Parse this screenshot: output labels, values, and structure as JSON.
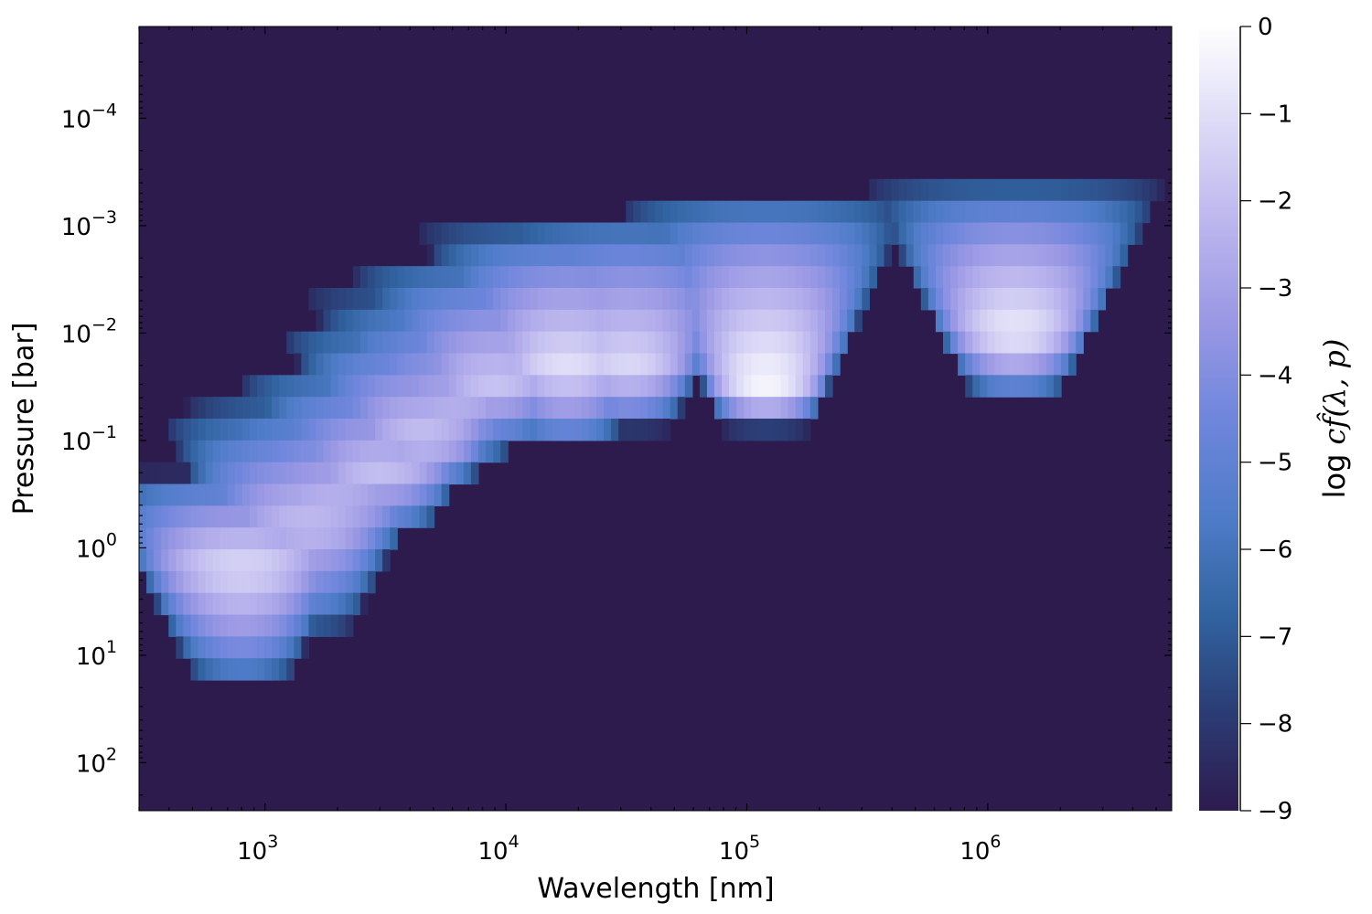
{
  "chart_data": {
    "type": "heatmap",
    "title": "",
    "xlabel": "Wavelength [nm]",
    "ylabel": "Pressure [bar]",
    "x_scale": "log",
    "y_scale": "log",
    "y_inverted": true,
    "xlim": [
      300,
      5800000
    ],
    "ylim": [
      280,
      1.4e-05
    ],
    "x_ticks": [
      {
        "value": 1000,
        "mantissa": "10",
        "exponent": "3"
      },
      {
        "value": 10000,
        "mantissa": "10",
        "exponent": "4"
      },
      {
        "value": 100000,
        "mantissa": "10",
        "exponent": "5"
      },
      {
        "value": 1000000,
        "mantissa": "10",
        "exponent": "6"
      }
    ],
    "y_ticks": [
      {
        "value": 0.0001,
        "mantissa": "10",
        "exponent": "−4"
      },
      {
        "value": 0.001,
        "mantissa": "10",
        "exponent": "−3"
      },
      {
        "value": 0.01,
        "mantissa": "10",
        "exponent": "−2"
      },
      {
        "value": 0.1,
        "mantissa": "10",
        "exponent": "−1"
      },
      {
        "value": 1,
        "mantissa": "10",
        "exponent": "0"
      },
      {
        "value": 10,
        "mantissa": "10",
        "exponent": "1"
      },
      {
        "value": 100,
        "mantissa": "10",
        "exponent": "2"
      }
    ],
    "grid": false,
    "colorbar": {
      "label_prefix": "log ",
      "label_math": "cf̂(λ, p)",
      "range": [
        -9,
        0
      ],
      "ticks": [
        "0",
        "−1",
        "−2",
        "−3",
        "−4",
        "−5",
        "−6",
        "−7",
        "−8",
        "−9"
      ],
      "colors": [
        "#2d1b4e",
        "#2b3c74",
        "#3163a0",
        "#4f7cc8",
        "#6f86dc",
        "#9a98e4",
        "#bcb6ee",
        "#dcdaf6",
        "#ffffff"
      ]
    },
    "background_value": -9,
    "contribution_lobes": [
      {
        "center_nm": 800,
        "p_top_bar": 0.2,
        "p_bottom_bar": 20,
        "peak_p_bar": 1.5,
        "peak_log_cf": -1.2
      },
      {
        "center_nm": 1500,
        "p_top_bar": 0.05,
        "p_bottom_bar": 6,
        "peak_p_bar": 0.6,
        "peak_log_cf": -2.0
      },
      {
        "center_nm": 1900,
        "p_top_bar": 0.04,
        "p_bottom_bar": 2,
        "peak_p_bar": 0.4,
        "peak_log_cf": -2.2
      },
      {
        "center_nm": 3000,
        "p_top_bar": 0.02,
        "p_bottom_bar": 0.8,
        "peak_p_bar": 0.2,
        "peak_log_cf": -2.0
      },
      {
        "center_nm": 4500,
        "p_top_bar": 0.008,
        "p_bottom_bar": 0.3,
        "peak_p_bar": 0.1,
        "peak_log_cf": -1.8
      },
      {
        "center_nm": 6000,
        "p_top_bar": 0.004,
        "p_bottom_bar": 0.2,
        "peak_p_bar": 0.05,
        "peak_log_cf": -2.5
      },
      {
        "center_nm": 9000,
        "p_top_bar": 0.002,
        "p_bottom_bar": 0.12,
        "peak_p_bar": 0.03,
        "peak_log_cf": -1.8
      },
      {
        "center_nm": 18000,
        "p_top_bar": 0.001,
        "p_bottom_bar": 0.12,
        "peak_p_bar": 0.02,
        "peak_log_cf": -1.0
      },
      {
        "center_nm": 32000,
        "p_top_bar": 0.0008,
        "p_bottom_bar": 0.08,
        "peak_p_bar": 0.02,
        "peak_log_cf": -1.2
      },
      {
        "center_nm": 120000,
        "p_top_bar": 0.0005,
        "p_bottom_bar": 0.08,
        "peak_p_bar": 0.03,
        "peak_log_cf": -0.2
      },
      {
        "center_nm": 1300000,
        "p_top_bar": 0.0004,
        "p_bottom_bar": 0.04,
        "peak_p_bar": 0.01,
        "peak_log_cf": -0.6
      }
    ]
  }
}
